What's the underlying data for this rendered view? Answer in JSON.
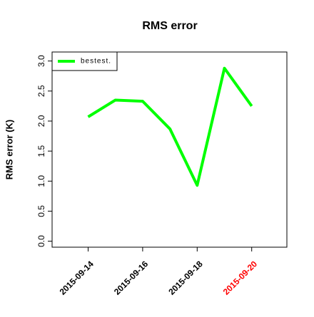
{
  "chart_data": {
    "type": "line",
    "title": "RMS error",
    "y_label": "RMS error (K)",
    "categories": [
      "2015-09-14",
      null,
      "2015-09-16",
      null,
      "2015-09-18",
      null,
      "2015-09-20"
    ],
    "category_colors": [
      "#000000",
      null,
      "#000000",
      null,
      "#000000",
      null,
      "#ff0000"
    ],
    "series": [
      {
        "name": "bestest.",
        "color": "#00ff00",
        "values": [
          2.07,
          2.35,
          2.33,
          1.87,
          0.93,
          2.88,
          2.25
        ]
      }
    ],
    "ylim": [
      -0.1,
      3.15
    ],
    "yticks": [
      0.0,
      0.5,
      1.0,
      1.5,
      2.0,
      2.5,
      3.0
    ],
    "ytick_labels": [
      "0.0",
      "0.5",
      "1.0",
      "1.5",
      "2.0",
      "2.5",
      "3.0"
    ],
    "legend": "top-left",
    "grid": false
  }
}
